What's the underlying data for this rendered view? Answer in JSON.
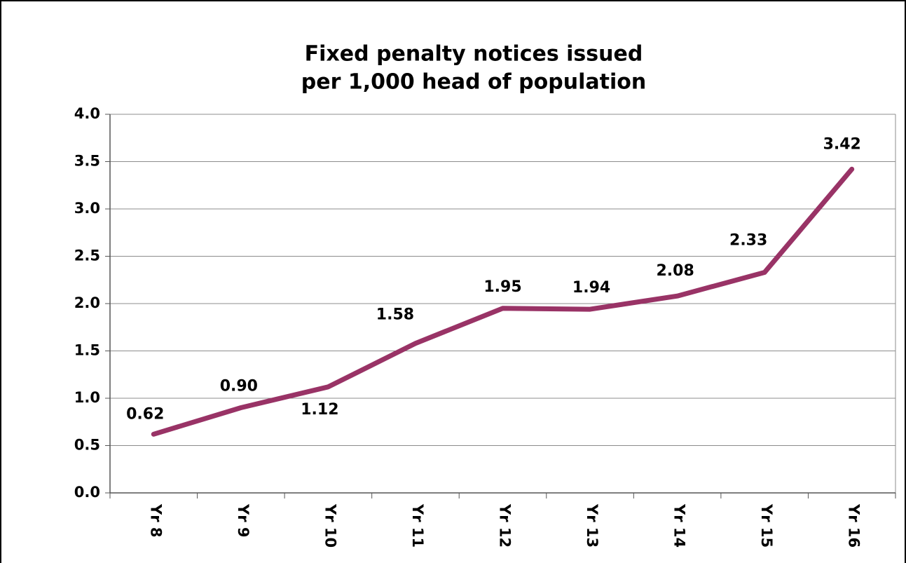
{
  "chart_data": {
    "type": "line",
    "title": [
      "Fixed penalty notices issued",
      "per 1,000 head of population"
    ],
    "categories": [
      "Yr 8",
      "Yr 9",
      "Yr 10",
      "Yr 11",
      "Yr 12",
      "Yr 13",
      "Yr 14",
      "Yr 15",
      "Yr 16"
    ],
    "values": [
      0.62,
      0.9,
      1.12,
      1.58,
      1.95,
      1.94,
      2.08,
      2.33,
      3.42
    ],
    "value_labels": [
      "0.62",
      "0.90",
      "1.12",
      "1.58",
      "1.95",
      "1.94",
      "2.08",
      "2.33",
      "3.42"
    ],
    "color": "#993366",
    "ylim": [
      0,
      4
    ],
    "yticks": [
      {
        "value": 0,
        "label": "0.0"
      },
      0.5,
      {
        "value": 1,
        "label": "1.0"
      },
      1.5,
      {
        "value": 2,
        "label": "2.0"
      },
      2.5,
      {
        "value": 3,
        "label": "3.0"
      },
      3.5,
      {
        "value": 4,
        "label": "4.0"
      }
    ],
    "grid": true
  }
}
